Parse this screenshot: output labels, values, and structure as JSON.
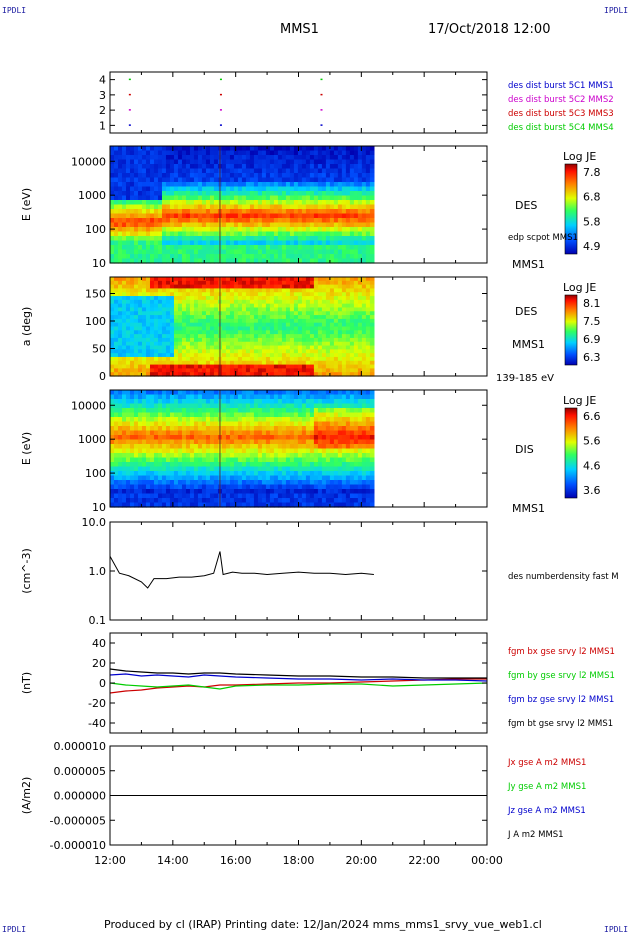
{
  "header": {
    "corner_tl": "IPDLI",
    "corner_tr": "IPDLI",
    "corner_bl": "IPDLI",
    "corner_br": "IPDLI",
    "spacecraft": "MMS1",
    "date": "17/Oct/2018 12:00"
  },
  "footer": {
    "text": "Produced by cl (IRAP)   Printing date: 12/Jan/2024   mms_mms1_srvy_vue_web1.cl"
  },
  "colors": {
    "fgm_bx": "#cc0000",
    "fgm_by": "#00cc00",
    "fgm_bz": "#0000cc",
    "fgm_bt": "#000000",
    "burst_c1": "#0000cc",
    "burst_c2": "#cc00cc",
    "burst_c3": "#cc0000",
    "burst_c4": "#00cc00"
  },
  "chart_data": [
    {
      "id": "burst",
      "type": "scatter",
      "ylim": [
        0.5,
        4.5
      ],
      "yticks": [
        "1",
        "2",
        "3",
        "4"
      ],
      "legend": [
        "des dist burst 5C1 MMS1",
        "des dist burst 5C2 MMS2",
        "des dist burst 5C3 MMS3",
        "des dist burst 5C4 MMS4"
      ],
      "series": [
        {
          "name": "des dist burst 5C1 MMS1",
          "y": 1,
          "x": [
            12.6,
            15.5,
            18.7
          ]
        },
        {
          "name": "des dist burst 5C2 MMS2",
          "y": 2,
          "x": [
            12.6,
            15.5,
            18.7
          ]
        },
        {
          "name": "des dist burst 5C3 MMS3",
          "y": 3,
          "x": [
            12.6,
            15.5,
            18.7
          ]
        },
        {
          "name": "des dist burst 5C4 MMS4",
          "y": 4,
          "x": [
            12.6,
            15.5,
            18.7
          ]
        }
      ]
    },
    {
      "id": "des_energy",
      "type": "heatmap",
      "ylabel": "E (eV)",
      "yticks": [
        "10",
        "100",
        "1000",
        "10000"
      ],
      "side_labels": [
        "DES",
        "edp scpot MMS1",
        "MMS1"
      ],
      "colorbar": {
        "title": "Log JE",
        "ticks": [
          "7.8",
          "6.8",
          "5.8",
          "4.9"
        ]
      },
      "data_end_hour": 20.4
    },
    {
      "id": "des_pitch",
      "type": "heatmap",
      "ylabel": "a (deg)",
      "yticks": [
        "0",
        "50",
        "100",
        "150"
      ],
      "side_labels": [
        "DES",
        "MMS1",
        "139-185 eV"
      ],
      "colorbar": {
        "title": "Log JE",
        "ticks": [
          "8.1",
          "7.5",
          "6.9",
          "6.3"
        ]
      },
      "data_end_hour": 20.4
    },
    {
      "id": "dis_energy",
      "type": "heatmap",
      "ylabel": "E (eV)",
      "yticks": [
        "10",
        "100",
        "1000",
        "10000"
      ],
      "side_labels": [
        "DIS",
        "MMS1"
      ],
      "colorbar": {
        "title": "Log JE",
        "ticks": [
          "6.6",
          "5.6",
          "4.6",
          "3.6"
        ]
      },
      "data_end_hour": 20.4
    },
    {
      "id": "density",
      "type": "line",
      "ylabel": "(cm^-3)",
      "yscale": "log",
      "ylim": [
        0.1,
        10.0
      ],
      "yticks": [
        "0.1",
        "1.0",
        "10.0"
      ],
      "series": [
        {
          "name": "des numberdensity fast M",
          "x": [
            12.0,
            12.3,
            12.6,
            13.0,
            13.2,
            13.4,
            13.8,
            14.2,
            14.6,
            15.0,
            15.3,
            15.5,
            15.6,
            15.9,
            16.2,
            16.6,
            17.0,
            17.5,
            18.0,
            18.5,
            19.0,
            19.5,
            20.0,
            20.4
          ],
          "y": [
            2.0,
            0.9,
            0.8,
            0.6,
            0.45,
            0.7,
            0.7,
            0.75,
            0.75,
            0.8,
            0.9,
            2.5,
            0.85,
            0.95,
            0.9,
            0.9,
            0.85,
            0.9,
            0.95,
            0.9,
            0.9,
            0.85,
            0.9,
            0.85
          ]
        }
      ]
    },
    {
      "id": "fgm",
      "type": "line",
      "ylabel": "(nT)",
      "ylim": [
        -50,
        50
      ],
      "yticks": [
        "-40",
        "-20",
        "0",
        "20",
        "40"
      ],
      "series": [
        {
          "name": "fgm bx gse srvy l2 MMS1",
          "x": [
            12.0,
            12.5,
            13.0,
            13.5,
            14.0,
            14.5,
            15.0,
            15.5,
            16.0,
            17.0,
            18.0,
            19.0,
            20.0,
            21.0,
            22.0,
            23.0,
            24.0
          ],
          "y": [
            -10,
            -8,
            -7,
            -5,
            -4,
            -3,
            -4,
            -2,
            -2,
            -1,
            0,
            0,
            1,
            2,
            3,
            4,
            4
          ]
        },
        {
          "name": "fgm by gse srvy l2 MMS1",
          "x": [
            12.0,
            12.5,
            13.0,
            13.5,
            14.0,
            14.5,
            15.0,
            15.5,
            16.0,
            17.0,
            18.0,
            19.0,
            20.0,
            21.0,
            22.0,
            23.0,
            24.0
          ],
          "y": [
            0,
            -2,
            -3,
            -4,
            -3,
            -2,
            -4,
            -6,
            -3,
            -2,
            -2,
            -1,
            -1,
            -3,
            -2,
            -1,
            0
          ]
        },
        {
          "name": "fgm bz gse srvy l2 MMS1",
          "x": [
            12.0,
            12.5,
            13.0,
            13.5,
            14.0,
            14.5,
            15.0,
            15.5,
            16.0,
            17.0,
            18.0,
            19.0,
            20.0,
            21.0,
            22.0,
            23.0,
            24.0
          ],
          "y": [
            8,
            9,
            7,
            8,
            7,
            6,
            8,
            7,
            6,
            5,
            4,
            4,
            3,
            4,
            3,
            3,
            2
          ]
        },
        {
          "name": "fgm bt gse srvy l2 MMS1",
          "x": [
            12.0,
            12.5,
            13.0,
            13.5,
            14.0,
            14.5,
            15.0,
            15.5,
            16.0,
            17.0,
            18.0,
            19.0,
            20.0,
            21.0,
            22.0,
            23.0,
            24.0
          ],
          "y": [
            14,
            12,
            11,
            10,
            10,
            9,
            10,
            10,
            9,
            8,
            7,
            7,
            6,
            6,
            5,
            5,
            5
          ]
        }
      ]
    },
    {
      "id": "current",
      "type": "line",
      "ylabel": "(A/m2)",
      "ylim": [
        -1e-05,
        1e-05
      ],
      "yticks": [
        "-0.000010",
        "-0.000005",
        "0.000000",
        "0.000005",
        "0.000010"
      ],
      "series": [
        {
          "name": "Jx gse A m2 MMS1",
          "x": [
            12.0,
            24.0
          ],
          "y": [
            0,
            0
          ]
        },
        {
          "name": "Jy gse A m2 MMS1",
          "x": [
            12.0,
            24.0
          ],
          "y": [
            0,
            0
          ]
        },
        {
          "name": "Jz gse A m2 MMS1",
          "x": [
            12.0,
            24.0
          ],
          "y": [
            0,
            0
          ]
        },
        {
          "name": "J A m2 MMS1",
          "x": [
            12.0,
            24.0
          ],
          "y": [
            0,
            0
          ]
        }
      ]
    }
  ],
  "xaxis": {
    "ticks": [
      "12:00",
      "14:00",
      "16:00",
      "18:00",
      "20:00",
      "22:00",
      "00:00"
    ]
  }
}
